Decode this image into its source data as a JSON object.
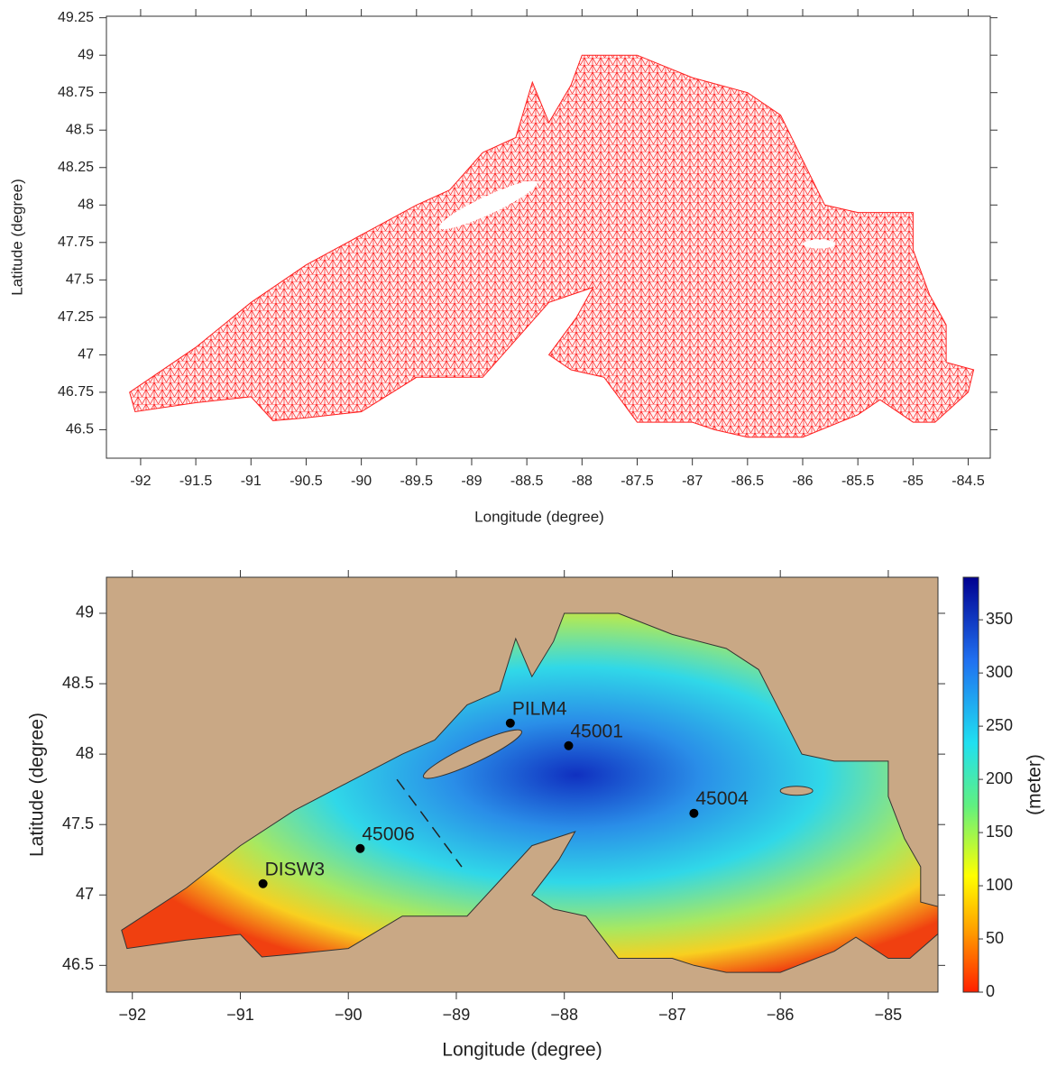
{
  "chart_data": [
    {
      "type": "mesh",
      "xlabel": "Longitude (degree)",
      "ylabel": "Latitude (degree)",
      "xlim": [
        -92.31,
        -84.3
      ],
      "ylim": [
        46.31,
        49.26
      ],
      "xticks": [
        -92,
        -91.5,
        -91,
        -90.5,
        -90,
        -89.5,
        -89,
        -88.5,
        -88,
        -87.5,
        -87,
        -86.5,
        -86,
        -85.5,
        -85,
        -84.5
      ],
      "yticks": [
        46.5,
        46.75,
        47,
        47.25,
        47.5,
        47.75,
        48,
        48.25,
        48.5,
        48.75,
        49,
        49.25
      ],
      "color": "#ff2020"
    },
    {
      "type": "map",
      "xlabel": "Longitude (degree)",
      "ylabel": "Latitude (degree)",
      "xlim": [
        -92.24,
        -84.54
      ],
      "ylim": [
        46.31,
        49.256
      ],
      "xticks": [
        {
          "value": -92,
          "label": "−92"
        },
        {
          "value": -91,
          "label": "−91"
        },
        {
          "value": -90,
          "label": "−90"
        },
        {
          "value": -89,
          "label": "−89"
        },
        {
          "value": -88,
          "label": "−88"
        },
        {
          "value": -87,
          "label": "−87"
        },
        {
          "value": -86,
          "label": "−86"
        },
        {
          "value": -85,
          "label": "−85"
        }
      ],
      "yticks": [
        46.5,
        47,
        47.5,
        48,
        48.5,
        49
      ],
      "labels": [
        "PILM4",
        "45001",
        "45004",
        "45006",
        "DISW3"
      ],
      "x": [
        -88.5,
        -87.96,
        -86.8,
        -89.89,
        -90.79
      ],
      "y": [
        48.22,
        48.06,
        47.58,
        47.33,
        47.08
      ],
      "colorbar": {
        "label": "(meter)",
        "lim": [
          0,
          390
        ],
        "ticks": [
          0,
          50,
          100,
          150,
          200,
          250,
          300,
          350
        ]
      }
    }
  ]
}
